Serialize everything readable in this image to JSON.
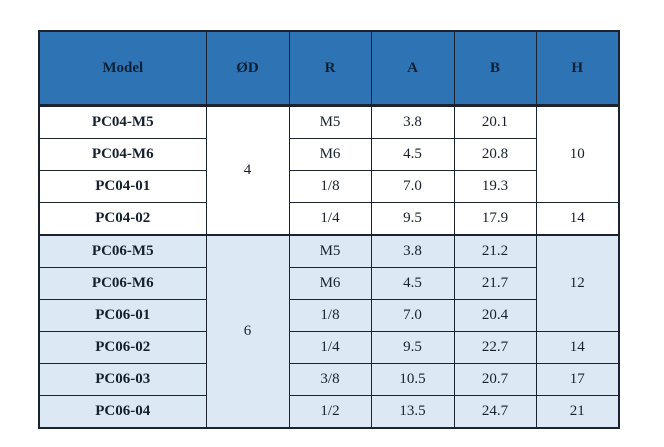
{
  "colors": {
    "header_bg": "#2E74B4",
    "section_alt_bg": "#DCE9F5",
    "border": "#1C2330",
    "header_text": "#0E2036",
    "body_text": "#17202E"
  },
  "table": {
    "columns": [
      "Model",
      "ØD",
      "R",
      "A",
      "B",
      "H"
    ],
    "rows": [
      {
        "model": "PC04-M5",
        "od": "4",
        "r": "M5",
        "a": "3.8",
        "b": "20.1",
        "h": "10"
      },
      {
        "model": "PC04-M6",
        "r": "M6",
        "a": "4.5",
        "b": "20.8"
      },
      {
        "model": "PC04-01",
        "r": "1/8",
        "a": "7.0",
        "b": "19.3"
      },
      {
        "model": "PC04-02",
        "r": "1/4",
        "a": "9.5",
        "b": "17.9",
        "h": "14"
      },
      {
        "model": "PC06-M5",
        "od": "6",
        "r": "M5",
        "a": "3.8",
        "b": "21.2",
        "h": "12"
      },
      {
        "model": "PC06-M6",
        "r": "M6",
        "a": "4.5",
        "b": "21.7"
      },
      {
        "model": "PC06-01",
        "r": "1/8",
        "a": "7.0",
        "b": "20.4"
      },
      {
        "model": "PC06-02",
        "r": "1/4",
        "a": "9.5",
        "b": "22.7",
        "h": "14"
      },
      {
        "model": "PC06-03",
        "r": "3/8",
        "a": "10.5",
        "b": "20.7",
        "h": "17"
      },
      {
        "model": "PC06-04",
        "r": "1/2",
        "a": "13.5",
        "b": "24.7",
        "h": "21"
      }
    ]
  }
}
